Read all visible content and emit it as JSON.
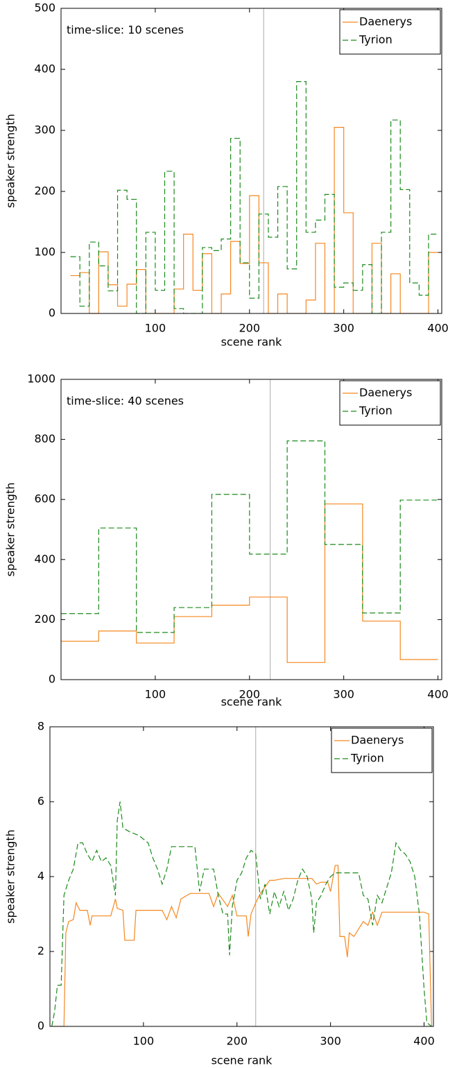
{
  "chart_data": [
    {
      "type": "line",
      "step": "post",
      "annotation": "time-slice: 10 scenes",
      "x_label": "scene rank",
      "y_label": "speaker strength",
      "xlim": [
        0,
        404
      ],
      "ylim": [
        0,
        500
      ],
      "xticks": [
        100,
        200,
        300,
        400
      ],
      "yticks": [
        0,
        100,
        200,
        300,
        400,
        500
      ],
      "marker_x": 215,
      "legend": "upper right",
      "series": [
        {
          "name": "Daenerys",
          "color": "#f5871f",
          "style": "solid",
          "x": [
            10,
            20,
            30,
            40,
            50,
            60,
            70,
            80,
            90,
            100,
            110,
            120,
            130,
            140,
            150,
            160,
            170,
            180,
            190,
            200,
            210,
            220,
            230,
            240,
            250,
            260,
            270,
            280,
            290,
            300,
            310,
            320,
            330,
            340,
            350,
            360,
            370,
            380,
            390,
            400
          ],
          "values": [
            62,
            67,
            0,
            101,
            47,
            12,
            48,
            72,
            0,
            0,
            0,
            40,
            130,
            38,
            98,
            0,
            32,
            118,
            82,
            193,
            83,
            0,
            32,
            0,
            0,
            22,
            115,
            0,
            305,
            165,
            0,
            0,
            115,
            0,
            65,
            0,
            0,
            0,
            100,
            100
          ]
        },
        {
          "name": "Tyrion",
          "color": "#1a8a1a",
          "style": "dashed",
          "x": [
            10,
            20,
            30,
            40,
            50,
            60,
            70,
            80,
            90,
            100,
            110,
            120,
            130,
            140,
            150,
            160,
            170,
            180,
            190,
            200,
            210,
            220,
            230,
            240,
            250,
            260,
            270,
            280,
            290,
            300,
            310,
            320,
            330,
            340,
            350,
            360,
            370,
            380,
            390,
            400
          ],
          "values": [
            93,
            12,
            117,
            78,
            37,
            202,
            187,
            0,
            133,
            38,
            233,
            8,
            0,
            0,
            108,
            103,
            122,
            287,
            83,
            25,
            163,
            125,
            208,
            73,
            380,
            133,
            153,
            195,
            43,
            50,
            38,
            80,
            0,
            133,
            317,
            203,
            50,
            30,
            130,
            130
          ]
        }
      ]
    },
    {
      "type": "line",
      "step": "post",
      "annotation": "time-slice: 40 scenes",
      "x_label": "scene rank",
      "y_label": "speaker strength",
      "xlim": [
        0,
        404
      ],
      "ylim": [
        0,
        1000
      ],
      "xticks": [
        100,
        200,
        300,
        400
      ],
      "yticks": [
        0,
        200,
        400,
        600,
        800,
        1000
      ],
      "marker_x": 222,
      "legend": "upper right",
      "series": [
        {
          "name": "Daenerys",
          "color": "#f5871f",
          "style": "solid",
          "x": [
            0,
            40,
            80,
            120,
            160,
            200,
            240,
            280,
            320,
            360,
            400
          ],
          "values": [
            128,
            162,
            122,
            210,
            248,
            275,
            57,
            585,
            195,
            67,
            67
          ]
        },
        {
          "name": "Tyrion",
          "color": "#1a8a1a",
          "style": "dashed",
          "x": [
            0,
            40,
            80,
            120,
            160,
            200,
            240,
            280,
            320,
            360,
            400
          ],
          "values": [
            220,
            505,
            157,
            240,
            617,
            418,
            795,
            450,
            222,
            598,
            598
          ]
        }
      ]
    },
    {
      "type": "line",
      "x_label": "scene rank",
      "y_label": "speaker strength",
      "xlim": [
        0,
        410
      ],
      "ylim": [
        0,
        8
      ],
      "xticks": [
        100,
        200,
        300,
        400
      ],
      "yticks": [
        0,
        2,
        4,
        6,
        8
      ],
      "marker_x": 220,
      "legend": "upper right",
      "series": [
        {
          "name": "Daenerys",
          "color": "#f5871f",
          "style": "solid",
          "x": [
            2,
            15,
            17,
            20,
            25,
            28,
            32,
            40,
            43,
            45,
            55,
            65,
            70,
            72,
            78,
            80,
            90,
            92,
            100,
            110,
            120,
            125,
            130,
            135,
            140,
            150,
            160,
            170,
            175,
            180,
            190,
            195,
            200,
            210,
            212,
            215,
            220,
            225,
            235,
            240,
            250,
            260,
            270,
            280,
            285,
            290,
            297,
            300,
            305,
            308,
            310,
            315,
            318,
            320,
            325,
            335,
            340,
            345,
            350,
            355,
            370,
            385,
            400,
            405,
            408
          ],
          "values": [
            0,
            0,
            2.5,
            2.8,
            2.85,
            3.3,
            3.1,
            3.1,
            2.7,
            2.95,
            2.95,
            2.95,
            3.4,
            3.15,
            3.1,
            2.3,
            2.3,
            3.1,
            3.1,
            3.1,
            3.1,
            2.85,
            3.2,
            2.9,
            3.4,
            3.55,
            3.55,
            3.55,
            3.2,
            3.55,
            3.2,
            3.5,
            2.95,
            2.95,
            2.4,
            3.0,
            3.3,
            3.55,
            3.9,
            3.9,
            3.95,
            3.95,
            3.95,
            3.95,
            3.8,
            3.85,
            3.85,
            3.6,
            4.3,
            4.3,
            2.4,
            2.4,
            1.85,
            2.5,
            2.4,
            2.8,
            2.7,
            3.05,
            2.7,
            3.05,
            3.05,
            3.05,
            3.05,
            3.0,
            0
          ]
        },
        {
          "name": "Tyrion",
          "color": "#1a8a1a",
          "style": "dashed",
          "x": [
            2,
            5,
            8,
            12,
            15,
            20,
            25,
            30,
            35,
            40,
            45,
            50,
            55,
            60,
            65,
            70,
            72,
            75,
            78,
            85,
            95,
            105,
            110,
            115,
            120,
            125,
            130,
            150,
            155,
            160,
            165,
            175,
            180,
            185,
            190,
            192,
            195,
            200,
            205,
            210,
            215,
            220,
            225,
            230,
            235,
            240,
            245,
            250,
            255,
            260,
            265,
            270,
            275,
            280,
            282,
            285,
            290,
            295,
            300,
            305,
            315,
            330,
            335,
            340,
            345,
            350,
            355,
            360,
            365,
            370,
            375,
            380,
            385,
            390,
            395,
            400,
            403,
            408
          ],
          "values": [
            0,
            0.4,
            1.1,
            1.1,
            3.5,
            3.9,
            4.2,
            4.9,
            4.9,
            4.6,
            4.4,
            4.7,
            4.4,
            4.5,
            4.3,
            3.5,
            5.5,
            6,
            5.3,
            5.2,
            5.1,
            4.9,
            4.5,
            4.2,
            3.8,
            4.2,
            4.8,
            4.8,
            4.8,
            3.6,
            4.2,
            4.2,
            3.5,
            3.0,
            3.0,
            1.9,
            3.2,
            3.9,
            4.1,
            4.5,
            4.7,
            4.6,
            3.4,
            3.8,
            3.0,
            3.6,
            3.2,
            3.6,
            3.1,
            3.4,
            3.9,
            4.2,
            4.0,
            3.4,
            2.5,
            3.3,
            3.5,
            3.8,
            4.0,
            4.1,
            4.1,
            4.1,
            3.5,
            3.4,
            2.7,
            3.5,
            3.3,
            3.7,
            4.1,
            4.9,
            4.7,
            4.6,
            4.4,
            4.0,
            3.0,
            1.0,
            0.1,
            0
          ]
        }
      ]
    }
  ]
}
